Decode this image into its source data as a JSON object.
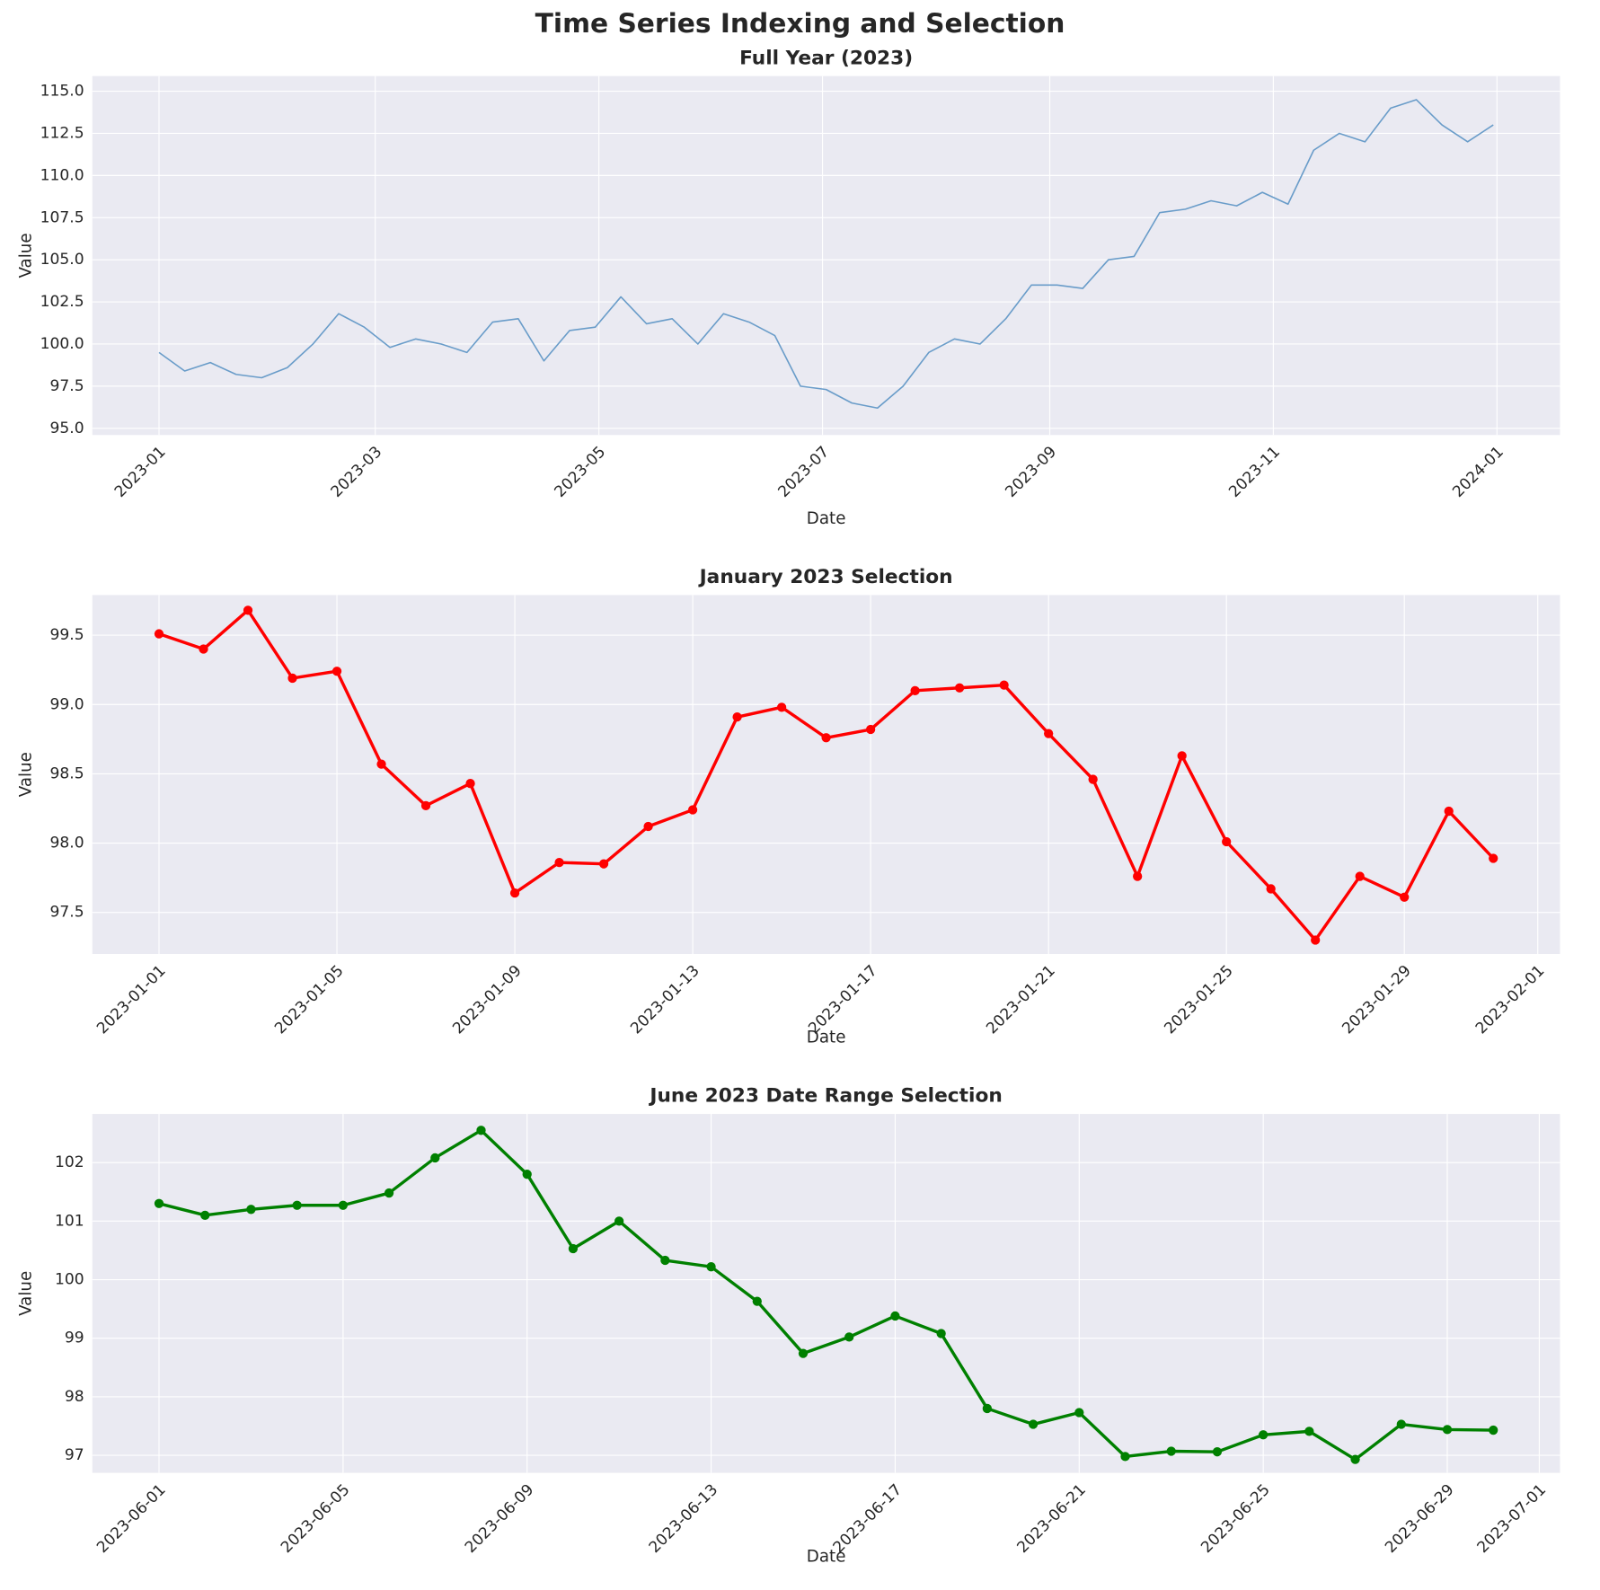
{
  "title": "Time Series Indexing and Selection",
  "chart_data": [
    {
      "type": "line",
      "title": "Full Year (2023)",
      "xlabel": "Date",
      "ylabel": "Value",
      "color": "#5b93c4",
      "marker": false,
      "grid": true,
      "x": [
        "2023-01-01",
        "2023-01-08",
        "2023-01-15",
        "2023-01-22",
        "2023-01-29",
        "2023-02-05",
        "2023-02-12",
        "2023-02-19",
        "2023-02-26",
        "2023-03-05",
        "2023-03-12",
        "2023-03-19",
        "2023-03-26",
        "2023-04-02",
        "2023-04-09",
        "2023-04-16",
        "2023-04-23",
        "2023-04-30",
        "2023-05-07",
        "2023-05-14",
        "2023-05-21",
        "2023-05-28",
        "2023-06-04",
        "2023-06-11",
        "2023-06-18",
        "2023-06-25",
        "2023-07-02",
        "2023-07-09",
        "2023-07-16",
        "2023-07-23",
        "2023-07-30",
        "2023-08-06",
        "2023-08-13",
        "2023-08-20",
        "2023-08-27",
        "2023-09-03",
        "2023-09-10",
        "2023-09-17",
        "2023-09-24",
        "2023-10-01",
        "2023-10-08",
        "2023-10-15",
        "2023-10-22",
        "2023-10-29",
        "2023-11-05",
        "2023-11-12",
        "2023-11-19",
        "2023-11-26",
        "2023-12-03",
        "2023-12-10",
        "2023-12-17",
        "2023-12-24",
        "2023-12-31"
      ],
      "values": [
        99.5,
        98.4,
        98.9,
        98.2,
        98.0,
        98.6,
        100.0,
        101.8,
        101.0,
        99.8,
        100.3,
        100.0,
        99.5,
        101.3,
        101.5,
        99.0,
        100.8,
        101.0,
        102.8,
        101.2,
        101.5,
        100.0,
        101.8,
        101.3,
        100.5,
        97.5,
        97.3,
        96.5,
        96.2,
        97.5,
        99.5,
        100.3,
        100.0,
        101.5,
        103.5,
        103.5,
        103.3,
        105.0,
        105.2,
        107.8,
        108.0,
        108.5,
        108.2,
        109.0,
        108.3,
        111.5,
        112.5,
        112.0,
        114.0,
        114.5,
        113.0,
        112.0,
        113.0
      ],
      "xlim": [
        "2022-12-13T19:12",
        "2024-01-18T04:48"
      ],
      "xticks": [
        {
          "value": "2023-01-01",
          "label": "2023-01"
        },
        {
          "value": "2023-03-01",
          "label": "2023-03"
        },
        {
          "value": "2023-05-01",
          "label": "2023-05"
        },
        {
          "value": "2023-07-01",
          "label": "2023-07"
        },
        {
          "value": "2023-09-01",
          "label": "2023-09"
        },
        {
          "value": "2023-11-01",
          "label": "2023-11"
        },
        {
          "value": "2024-01-01",
          "label": "2024-01"
        }
      ],
      "ylim": [
        94.6,
        115.9
      ],
      "yticks": [
        {
          "value": 95,
          "label": "95.0"
        },
        {
          "value": 97.5,
          "label": "97.5"
        },
        {
          "value": 100,
          "label": "100.0"
        },
        {
          "value": 102.5,
          "label": "102.5"
        },
        {
          "value": 105,
          "label": "105.0"
        },
        {
          "value": 107.5,
          "label": "107.5"
        },
        {
          "value": 110,
          "label": "110.0"
        },
        {
          "value": 112.5,
          "label": "112.5"
        },
        {
          "value": 115,
          "label": "115.0"
        }
      ]
    },
    {
      "type": "line",
      "title": "January 2023 Selection",
      "xlabel": "Date",
      "ylabel": "Value",
      "color": "#ff0000",
      "marker": true,
      "grid": true,
      "x": [
        "2023-01-01",
        "2023-01-02",
        "2023-01-03",
        "2023-01-04",
        "2023-01-05",
        "2023-01-06",
        "2023-01-07",
        "2023-01-08",
        "2023-01-09",
        "2023-01-10",
        "2023-01-11",
        "2023-01-12",
        "2023-01-13",
        "2023-01-14",
        "2023-01-15",
        "2023-01-16",
        "2023-01-17",
        "2023-01-18",
        "2023-01-19",
        "2023-01-20",
        "2023-01-21",
        "2023-01-22",
        "2023-01-23",
        "2023-01-24",
        "2023-01-25",
        "2023-01-26",
        "2023-01-27",
        "2023-01-28",
        "2023-01-29",
        "2023-01-30",
        "2023-01-31"
      ],
      "values": [
        99.51,
        99.4,
        99.68,
        99.19,
        99.24,
        98.57,
        98.27,
        98.43,
        97.64,
        97.86,
        97.85,
        98.12,
        98.24,
        98.91,
        98.98,
        98.76,
        98.82,
        99.1,
        99.12,
        99.14,
        98.79,
        98.46,
        97.76,
        98.63,
        98.01,
        97.67,
        97.3,
        97.76,
        97.61,
        98.23,
        97.89
      ],
      "xlim": [
        "2022-12-30T12:00",
        "2023-02-01T12:00"
      ],
      "xticks": [
        "2023-01-01",
        "2023-01-05",
        "2023-01-09",
        "2023-01-13",
        "2023-01-17",
        "2023-01-21",
        "2023-01-25",
        "2023-01-29",
        "2023-02-01"
      ],
      "ylim": [
        97.2,
        99.79
      ],
      "yticks": [
        {
          "value": 97.5,
          "label": "97.5"
        },
        {
          "value": 98,
          "label": "98.0"
        },
        {
          "value": 98.5,
          "label": "98.5"
        },
        {
          "value": 99,
          "label": "99.0"
        },
        {
          "value": 99.5,
          "label": "99.5"
        }
      ]
    },
    {
      "type": "line",
      "title": "June 2023 Date Range Selection",
      "xlabel": "Date",
      "ylabel": "Value",
      "color": "#008000",
      "marker": true,
      "grid": true,
      "x": [
        "2023-06-01",
        "2023-06-02",
        "2023-06-03",
        "2023-06-04",
        "2023-06-05",
        "2023-06-06",
        "2023-06-07",
        "2023-06-08",
        "2023-06-09",
        "2023-06-10",
        "2023-06-11",
        "2023-06-12",
        "2023-06-13",
        "2023-06-14",
        "2023-06-15",
        "2023-06-16",
        "2023-06-17",
        "2023-06-18",
        "2023-06-19",
        "2023-06-20",
        "2023-06-21",
        "2023-06-22",
        "2023-06-23",
        "2023-06-24",
        "2023-06-25",
        "2023-06-26",
        "2023-06-27",
        "2023-06-28",
        "2023-06-29",
        "2023-06-30"
      ],
      "values": [
        101.3,
        101.1,
        101.2,
        101.27,
        101.27,
        101.48,
        102.08,
        102.55,
        101.8,
        100.53,
        101.0,
        100.33,
        100.22,
        99.63,
        98.74,
        99.02,
        99.38,
        99.08,
        97.8,
        97.53,
        97.73,
        96.98,
        97.07,
        97.06,
        97.35,
        97.41,
        96.93,
        97.53,
        97.44,
        97.43
      ],
      "xlim": [
        "2023-05-30T13:12",
        "2023-07-01T10:48"
      ],
      "xticks": [
        "2023-06-01",
        "2023-06-05",
        "2023-06-09",
        "2023-06-13",
        "2023-06-17",
        "2023-06-21",
        "2023-06-25",
        "2023-06-29",
        "2023-07-01"
      ],
      "ylim": [
        96.7,
        102.83
      ],
      "yticks": [
        97,
        98,
        99,
        100,
        101,
        102
      ]
    }
  ]
}
